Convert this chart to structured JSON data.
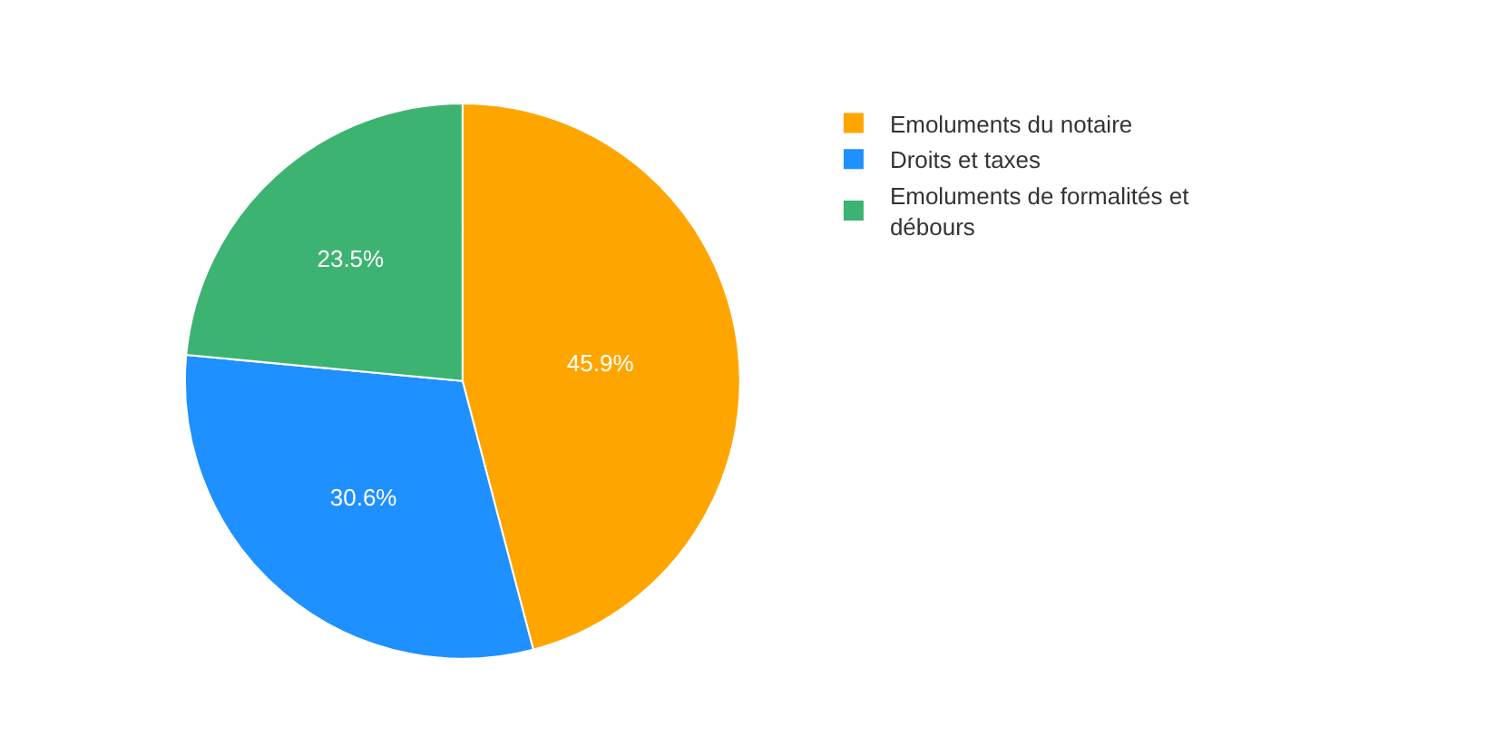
{
  "chart_data": {
    "type": "pie",
    "categories": [
      "Emoluments du notaire",
      "Droits et taxes",
      "Emoluments de formalités et débours"
    ],
    "values": [
      45.9,
      30.6,
      23.5
    ],
    "value_labels": [
      "45.9%",
      "30.6%",
      "23.5%"
    ],
    "colors": [
      "#ffa500",
      "#1e90ff",
      "#3cb371"
    ],
    "legend": "top right"
  }
}
